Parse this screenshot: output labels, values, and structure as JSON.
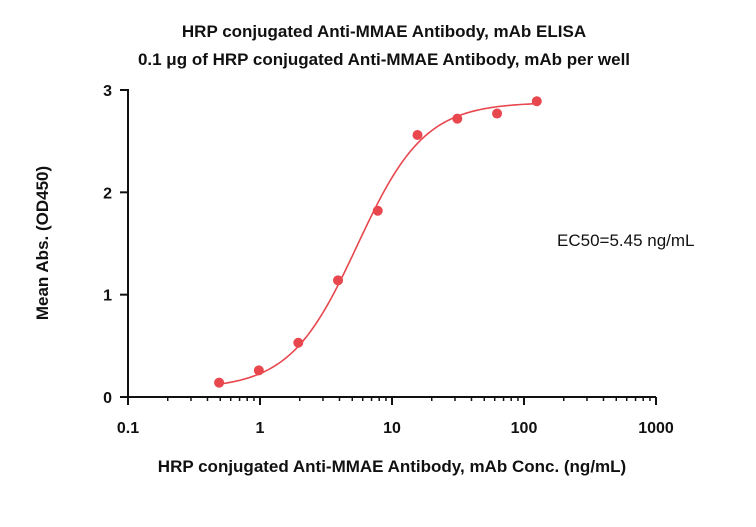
{
  "chart_data": {
    "type": "scatter",
    "title": "HRP conjugated Anti-MMAE Antibody, mAb ELISA",
    "subtitle": "0.1 μg of HRP conjugated Anti-MMAE Antibody, mAb per well",
    "xlabel": "HRP conjugated Anti-MMAE Antibody, mAb Conc. (ng/mL)",
    "ylabel": "Mean Abs. (OD450)",
    "xscale": "log",
    "xlim": [
      0.1,
      1000
    ],
    "ylim": [
      0,
      3
    ],
    "x_ticks": [
      0.1,
      1,
      10,
      100,
      1000
    ],
    "x_tick_labels": [
      "0.1",
      "1",
      "10",
      "100",
      "1000"
    ],
    "y_ticks": [
      0,
      1,
      2,
      3
    ],
    "y_tick_labels": [
      "0",
      "1",
      "2",
      "3"
    ],
    "grid": false,
    "series": [
      {
        "name": "ELISA",
        "x": [
          0.49,
          0.98,
          1.95,
          3.9,
          7.8,
          15.6,
          31.25,
          62.5,
          125
        ],
        "values": [
          0.14,
          0.26,
          0.53,
          1.14,
          1.82,
          2.56,
          2.72,
          2.77,
          2.89
        ],
        "color": "#e8474e"
      }
    ],
    "fit_curve": {
      "model": "4PL",
      "bottom": 0.08,
      "top": 2.88,
      "ec50": 5.45,
      "hill": 1.7,
      "color": "#e8474e"
    },
    "annotation": "EC50=5.45 ng/mL"
  }
}
